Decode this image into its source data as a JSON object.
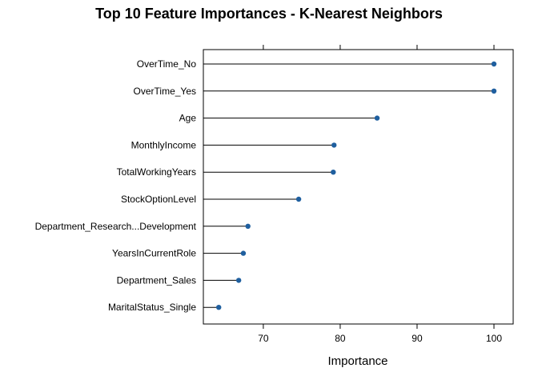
{
  "chart_data": {
    "type": "dot",
    "title": "Top 10 Feature Importances - K-Nearest Neighbors",
    "xlabel": "Importance",
    "ylabel": "",
    "categories": [
      "OverTime_No",
      "OverTime_Yes",
      "Age",
      "MonthlyIncome",
      "TotalWorkingYears",
      "StockOptionLevel",
      "Department_Research...Development",
      "YearsInCurrentRole",
      "Department_Sales",
      "MaritalStatus_Single"
    ],
    "values": [
      100,
      100,
      84.8,
      79.2,
      79.1,
      74.6,
      68.0,
      67.4,
      66.8,
      64.2
    ],
    "xlim": [
      62.2,
      102.5
    ],
    "xticks": [
      70,
      80,
      90,
      100
    ],
    "xtick_labels": [
      "70",
      "80",
      "90",
      "100"
    ],
    "grid": false,
    "point_color": "#1f5f9f",
    "stem_color": "#000000"
  }
}
